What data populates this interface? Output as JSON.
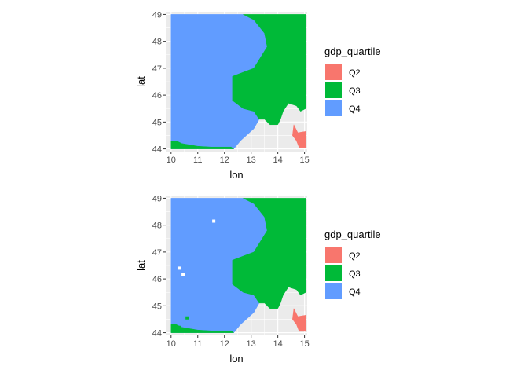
{
  "chart_data": [
    {
      "type": "heatmap",
      "xlabel": "lon",
      "ylabel": "lat",
      "xlim": [
        9.8,
        15.1
      ],
      "ylim": [
        43.9,
        49.1
      ],
      "x_ticks": [
        "10",
        "11",
        "12",
        "13",
        "14",
        "15"
      ],
      "y_ticks": [
        "44",
        "45",
        "46",
        "47",
        "48",
        "49"
      ],
      "grid": true,
      "legend": {
        "title": "gdp_quartile",
        "placement": "right",
        "entries": [
          {
            "label": "Q2",
            "color": "#F8766D"
          },
          {
            "label": "Q3",
            "color": "#00BA38"
          },
          {
            "label": "Q4",
            "color": "#619CFF"
          }
        ]
      },
      "regions": {
        "Q4": [
          [
            10,
            49
          ],
          [
            12.7,
            49
          ],
          [
            13.1,
            48.8
          ],
          [
            13.5,
            48.3
          ],
          [
            13.6,
            47.8
          ],
          [
            13.1,
            47.0
          ],
          [
            12.3,
            46.7
          ],
          [
            12.3,
            45.8
          ],
          [
            12.7,
            45.5
          ],
          [
            13.1,
            45.4
          ],
          [
            13.3,
            45.1
          ],
          [
            13.1,
            44.75
          ],
          [
            12.6,
            44.3
          ],
          [
            12.35,
            44.0
          ],
          [
            10,
            44.0
          ]
        ],
        "Q3": [
          [
            12.7,
            49
          ],
          [
            15.05,
            49
          ],
          [
            15.05,
            45.5
          ],
          [
            14.85,
            45.4
          ],
          [
            14.7,
            45.6
          ],
          [
            14.4,
            45.7
          ],
          [
            14.2,
            45.4
          ],
          [
            14.1,
            45.1
          ],
          [
            14.0,
            44.9
          ],
          [
            13.7,
            44.9
          ],
          [
            13.5,
            45.1
          ],
          [
            13.3,
            45.1
          ],
          [
            13.1,
            45.4
          ],
          [
            12.7,
            45.5
          ],
          [
            12.3,
            45.8
          ],
          [
            12.3,
            46.7
          ],
          [
            13.1,
            47.0
          ],
          [
            13.6,
            47.8
          ],
          [
            13.5,
            48.3
          ],
          [
            13.1,
            48.8
          ]
        ],
        "Q3_south": [
          [
            10,
            44.0
          ],
          [
            12.35,
            44.0
          ],
          [
            12.25,
            44.07
          ],
          [
            11.5,
            44.07
          ],
          [
            11,
            44.1
          ],
          [
            10.4,
            44.2
          ],
          [
            10.2,
            44.3
          ],
          [
            10,
            44.3
          ]
        ],
        "Q2": [
          [
            14.6,
            44.9
          ],
          [
            14.75,
            44.6
          ],
          [
            15.05,
            44.65
          ],
          [
            15.05,
            44.05
          ],
          [
            14.8,
            44.05
          ],
          [
            14.7,
            44.3
          ],
          [
            14.55,
            44.5
          ]
        ]
      },
      "isolated_cells": []
    },
    {
      "type": "heatmap",
      "xlabel": "lon",
      "ylabel": "lat",
      "xlim": [
        9.8,
        15.1
      ],
      "ylim": [
        43.9,
        49.1
      ],
      "x_ticks": [
        "10",
        "11",
        "12",
        "13",
        "14",
        "15"
      ],
      "y_ticks": [
        "44",
        "45",
        "46",
        "47",
        "48",
        "49"
      ],
      "grid": true,
      "legend": {
        "title": "gdp_quartile",
        "placement": "right",
        "entries": [
          {
            "label": "Q2",
            "color": "#F8766D"
          },
          {
            "label": "Q3",
            "color": "#00BA38"
          },
          {
            "label": "Q4",
            "color": "#619CFF"
          }
        ]
      },
      "regions": {
        "Q4": [
          [
            10,
            49
          ],
          [
            12.7,
            49
          ],
          [
            13.1,
            48.8
          ],
          [
            13.5,
            48.3
          ],
          [
            13.6,
            47.8
          ],
          [
            13.1,
            47.0
          ],
          [
            12.3,
            46.7
          ],
          [
            12.3,
            45.8
          ],
          [
            12.7,
            45.5
          ],
          [
            13.1,
            45.4
          ],
          [
            13.3,
            45.1
          ],
          [
            13.1,
            44.75
          ],
          [
            12.6,
            44.3
          ],
          [
            12.35,
            44.0
          ],
          [
            10,
            44.0
          ]
        ],
        "Q3": [
          [
            12.7,
            49
          ],
          [
            15.05,
            49
          ],
          [
            15.05,
            45.5
          ],
          [
            14.85,
            45.4
          ],
          [
            14.7,
            45.6
          ],
          [
            14.4,
            45.7
          ],
          [
            14.2,
            45.4
          ],
          [
            14.1,
            45.1
          ],
          [
            14.0,
            44.9
          ],
          [
            13.7,
            44.9
          ],
          [
            13.5,
            45.1
          ],
          [
            13.3,
            45.1
          ],
          [
            13.1,
            45.4
          ],
          [
            12.7,
            45.5
          ],
          [
            12.3,
            45.8
          ],
          [
            12.3,
            46.7
          ],
          [
            13.1,
            47.0
          ],
          [
            13.6,
            47.8
          ],
          [
            13.5,
            48.3
          ],
          [
            13.1,
            48.8
          ]
        ],
        "Q3_south": [
          [
            10,
            44.0
          ],
          [
            12.35,
            44.0
          ],
          [
            12.25,
            44.07
          ],
          [
            11.5,
            44.07
          ],
          [
            11,
            44.1
          ],
          [
            10.4,
            44.2
          ],
          [
            10.2,
            44.3
          ],
          [
            10,
            44.3
          ]
        ],
        "Q2": [
          [
            14.6,
            44.9
          ],
          [
            14.75,
            44.6
          ],
          [
            15.05,
            44.65
          ],
          [
            15.05,
            44.05
          ],
          [
            14.8,
            44.05
          ],
          [
            14.7,
            44.3
          ],
          [
            14.55,
            44.5
          ]
        ]
      },
      "isolated_cells": [
        {
          "lon": 11.6,
          "lat": 48.15,
          "quartile": "NA"
        },
        {
          "lon": 10.3,
          "lat": 46.4,
          "quartile": "NA"
        },
        {
          "lon": 10.45,
          "lat": 46.15,
          "quartile": "NA"
        },
        {
          "lon": 10.6,
          "lat": 44.55,
          "quartile": "Q3"
        },
        {
          "lon": 10.3,
          "lat": 44.2,
          "quartile": "Q3"
        }
      ]
    }
  ]
}
